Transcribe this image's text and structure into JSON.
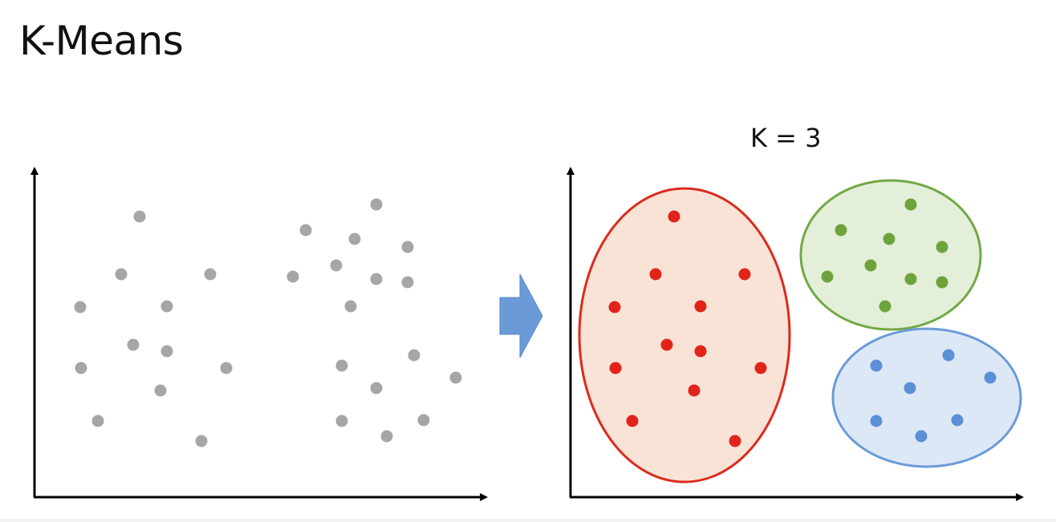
{
  "title": "K-Means",
  "k_label": "K = 3",
  "colors": {
    "raw_point": "#a6a6a6",
    "axis": "#000000",
    "arrow": "#6a9bd8",
    "cluster_red_point": "#e2231a",
    "cluster_red_fill": "#f9e3d6",
    "cluster_red_stroke": "#dc2a1c",
    "cluster_green_point": "#6ea33c",
    "cluster_green_fill": "#e3efd9",
    "cluster_green_stroke": "#72a844",
    "cluster_blue_point": "#5b8fd8",
    "cluster_blue_fill": "#dde8f6",
    "cluster_blue_stroke": "#6a9bd8"
  },
  "icons": [
    "right-arrow-icon"
  ]
}
